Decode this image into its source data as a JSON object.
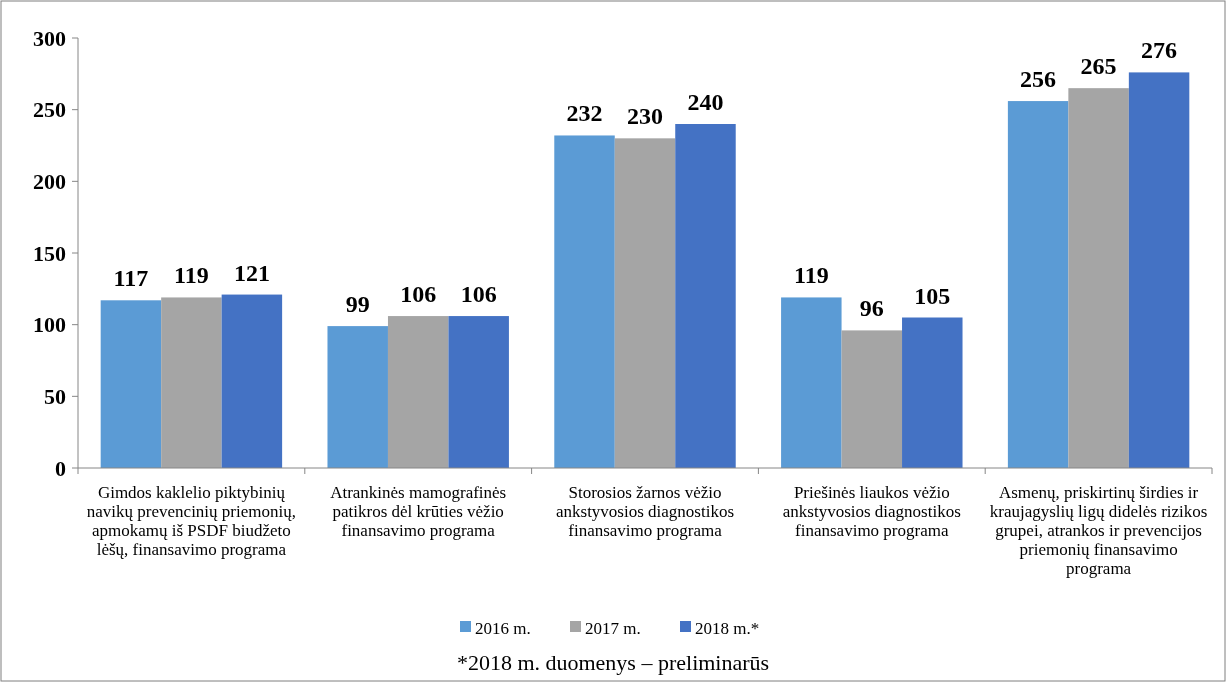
{
  "chart_data": {
    "type": "bar",
    "categories": [
      "Gimdos kaklelio piktybinių navikų prevencinių priemonių, apmokamų iš PSDF biudžeto lėšų, finansavimo programa",
      "Atrankinės mamografinės patikros dėl krūties vėžio finansavimo programa",
      "Storosios žarnos vėžio ankstyvosios diagnostikos finansavimo programa",
      "Priešinės liaukos vėžio ankstyvosios diagnostikos finansavimo programa",
      "Asmenų, priskirtinų širdies ir kraujagyslių ligų didelės rizikos grupei, atrankos ir prevencijos priemonių finansavimo programa"
    ],
    "series": [
      {
        "name": "2016 m.",
        "color": "#5b9bd5",
        "values": [
          117,
          99,
          232,
          119,
          256
        ]
      },
      {
        "name": "2017 m.",
        "color": "#a5a5a5",
        "values": [
          119,
          106,
          230,
          96,
          265
        ]
      },
      {
        "name": "2018 m.*",
        "color": "#4472c4",
        "values": [
          121,
          106,
          240,
          105,
          276
        ]
      }
    ],
    "ylim": [
      0,
      300
    ],
    "yticks": [
      0,
      50,
      100,
      150,
      200,
      250,
      300
    ],
    "data_labels": true,
    "legend": "bottom",
    "grid": false,
    "annotations": [
      "*2018 m. duomenys – preliminarūs"
    ]
  }
}
